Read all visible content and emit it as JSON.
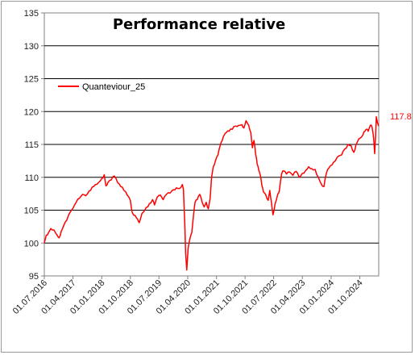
{
  "chart_data": {
    "type": "line",
    "title": "Performance relative",
    "xlabel": "",
    "ylabel": "",
    "ylim": [
      95,
      135
    ],
    "yticks": [
      95,
      100,
      105,
      110,
      115,
      120,
      125,
      130,
      135
    ],
    "xlim": [
      "2016-07-01",
      "2025-03-31"
    ],
    "xticks": [
      "01.07.2016",
      "01.04.2017",
      "01.01.2018",
      "01.10.2018",
      "01.07.2019",
      "01.04.2020",
      "01.01.2021",
      "01.10.2021",
      "01.07.2022",
      "01.04.2023",
      "01.01.2024",
      "01.10.2024"
    ],
    "grid": "horizontal",
    "legend": "top-left",
    "end_label": "117.8",
    "series": [
      {
        "name": "Quanteviour_25",
        "color": "#ff0000",
        "points": [
          [
            "2016-07-01",
            100.0
          ],
          [
            "2016-07-20",
            101.2
          ],
          [
            "2016-08-10",
            101.6
          ],
          [
            "2016-09-01",
            102.2
          ],
          [
            "2016-10-01",
            102.0
          ],
          [
            "2016-11-01",
            101.2
          ],
          [
            "2016-11-20",
            100.8
          ],
          [
            "2016-12-10",
            101.8
          ],
          [
            "2017-01-01",
            102.6
          ],
          [
            "2017-02-01",
            103.5
          ],
          [
            "2017-03-01",
            104.6
          ],
          [
            "2017-04-01",
            105.3
          ],
          [
            "2017-05-01",
            106.2
          ],
          [
            "2017-06-01",
            106.8
          ],
          [
            "2017-07-01",
            107.4
          ],
          [
            "2017-08-01",
            107.2
          ],
          [
            "2017-09-01",
            107.9
          ],
          [
            "2017-10-01",
            108.5
          ],
          [
            "2017-11-01",
            108.9
          ],
          [
            "2017-12-01",
            109.2
          ],
          [
            "2018-01-01",
            109.8
          ],
          [
            "2018-01-25",
            110.4
          ],
          [
            "2018-02-10",
            108.7
          ],
          [
            "2018-03-01",
            109.2
          ],
          [
            "2018-04-01",
            109.6
          ],
          [
            "2018-05-01",
            110.2
          ],
          [
            "2018-06-01",
            109.2
          ],
          [
            "2018-07-01",
            108.6
          ],
          [
            "2018-08-01",
            108.0
          ],
          [
            "2018-09-01",
            107.3
          ],
          [
            "2018-10-01",
            106.5
          ],
          [
            "2018-10-20",
            104.6
          ],
          [
            "2018-11-15",
            104.2
          ],
          [
            "2018-12-10",
            103.6
          ],
          [
            "2018-12-25",
            103.1
          ],
          [
            "2019-01-20",
            104.5
          ],
          [
            "2019-03-01",
            105.4
          ],
          [
            "2019-04-01",
            106.0
          ],
          [
            "2019-05-01",
            106.6
          ],
          [
            "2019-05-20",
            105.8
          ],
          [
            "2019-06-15",
            107.0
          ],
          [
            "2019-07-15",
            107.3
          ],
          [
            "2019-08-10",
            106.6
          ],
          [
            "2019-09-10",
            107.4
          ],
          [
            "2019-10-15",
            107.6
          ],
          [
            "2019-11-15",
            108.1
          ],
          [
            "2019-12-15",
            108.4
          ],
          [
            "2020-01-15",
            108.3
          ],
          [
            "2020-02-10",
            108.9
          ],
          [
            "2020-02-20",
            108.2
          ],
          [
            "2020-03-05",
            102.5
          ],
          [
            "2020-03-12",
            98.5
          ],
          [
            "2020-03-23",
            95.9
          ],
          [
            "2020-04-05",
            99.2
          ],
          [
            "2020-04-20",
            100.5
          ],
          [
            "2020-05-10",
            101.6
          ],
          [
            "2020-05-25",
            104.0
          ],
          [
            "2020-06-10",
            106.2
          ],
          [
            "2020-07-01",
            106.6
          ],
          [
            "2020-07-25",
            107.4
          ],
          [
            "2020-08-15",
            106.3
          ],
          [
            "2020-09-05",
            105.5
          ],
          [
            "2020-09-25",
            106.2
          ],
          [
            "2020-10-15",
            105.2
          ],
          [
            "2020-11-01",
            106.8
          ],
          [
            "2020-11-15",
            110.0
          ],
          [
            "2020-12-01",
            111.6
          ],
          [
            "2020-12-20",
            112.4
          ],
          [
            "2021-01-15",
            113.4
          ],
          [
            "2021-02-05",
            114.8
          ],
          [
            "2021-02-25",
            115.6
          ],
          [
            "2021-03-15",
            116.4
          ],
          [
            "2021-04-05",
            116.8
          ],
          [
            "2021-05-01",
            117.0
          ],
          [
            "2021-06-01",
            117.3
          ],
          [
            "2021-07-01",
            117.8
          ],
          [
            "2021-08-01",
            117.9
          ],
          [
            "2021-09-01",
            118.0
          ],
          [
            "2021-09-20",
            117.5
          ],
          [
            "2021-10-10",
            118.6
          ],
          [
            "2021-11-05",
            117.9
          ],
          [
            "2021-11-25",
            116.8
          ],
          [
            "2021-12-10",
            114.5
          ],
          [
            "2021-12-25",
            115.6
          ],
          [
            "2022-01-10",
            113.5
          ],
          [
            "2022-01-25",
            112.0
          ],
          [
            "2022-02-10",
            111.0
          ],
          [
            "2022-02-25",
            110.2
          ],
          [
            "2022-03-10",
            108.8
          ],
          [
            "2022-03-25",
            107.8
          ],
          [
            "2022-04-15",
            107.4
          ],
          [
            "2022-05-10",
            106.5
          ],
          [
            "2022-05-25",
            108.0
          ],
          [
            "2022-06-10",
            106.2
          ],
          [
            "2022-06-25",
            104.3
          ],
          [
            "2022-07-15",
            106.0
          ],
          [
            "2022-08-10",
            107.5
          ],
          [
            "2022-08-25",
            108.0
          ],
          [
            "2022-09-15",
            110.5
          ],
          [
            "2022-10-05",
            111.0
          ],
          [
            "2022-11-01",
            110.5
          ],
          [
            "2022-12-01",
            110.8
          ],
          [
            "2023-01-01",
            110.3
          ],
          [
            "2023-02-01",
            110.9
          ],
          [
            "2023-03-01",
            110.0
          ],
          [
            "2023-04-01",
            110.6
          ],
          [
            "2023-05-01",
            111.0
          ],
          [
            "2023-06-01",
            111.6
          ],
          [
            "2023-07-01",
            111.3
          ],
          [
            "2023-08-01",
            111.2
          ],
          [
            "2023-09-01",
            110.0
          ],
          [
            "2023-10-01",
            108.9
          ],
          [
            "2023-10-25",
            108.6
          ],
          [
            "2023-11-15",
            110.5
          ],
          [
            "2023-12-10",
            111.4
          ],
          [
            "2024-01-10",
            111.9
          ],
          [
            "2024-02-10",
            112.5
          ],
          [
            "2024-03-10",
            113.2
          ],
          [
            "2024-04-10",
            113.4
          ],
          [
            "2024-05-10",
            114.3
          ],
          [
            "2024-06-10",
            115.0
          ],
          [
            "2024-07-10",
            114.8
          ],
          [
            "2024-08-05",
            113.8
          ],
          [
            "2024-08-25",
            114.9
          ],
          [
            "2024-09-20",
            115.8
          ],
          [
            "2024-10-15",
            116.1
          ],
          [
            "2024-11-10",
            116.9
          ],
          [
            "2024-12-01",
            117.3
          ],
          [
            "2024-12-20",
            117.0
          ],
          [
            "2025-01-10",
            117.9
          ],
          [
            "2025-01-25",
            117.7
          ],
          [
            "2025-02-10",
            116.0
          ],
          [
            "2025-02-20",
            113.6
          ],
          [
            "2025-03-01",
            116.2
          ],
          [
            "2025-03-08",
            119.2
          ],
          [
            "2025-03-15",
            118.7
          ],
          [
            "2025-03-22",
            118.2
          ],
          [
            "2025-03-31",
            117.8
          ]
        ]
      }
    ]
  }
}
